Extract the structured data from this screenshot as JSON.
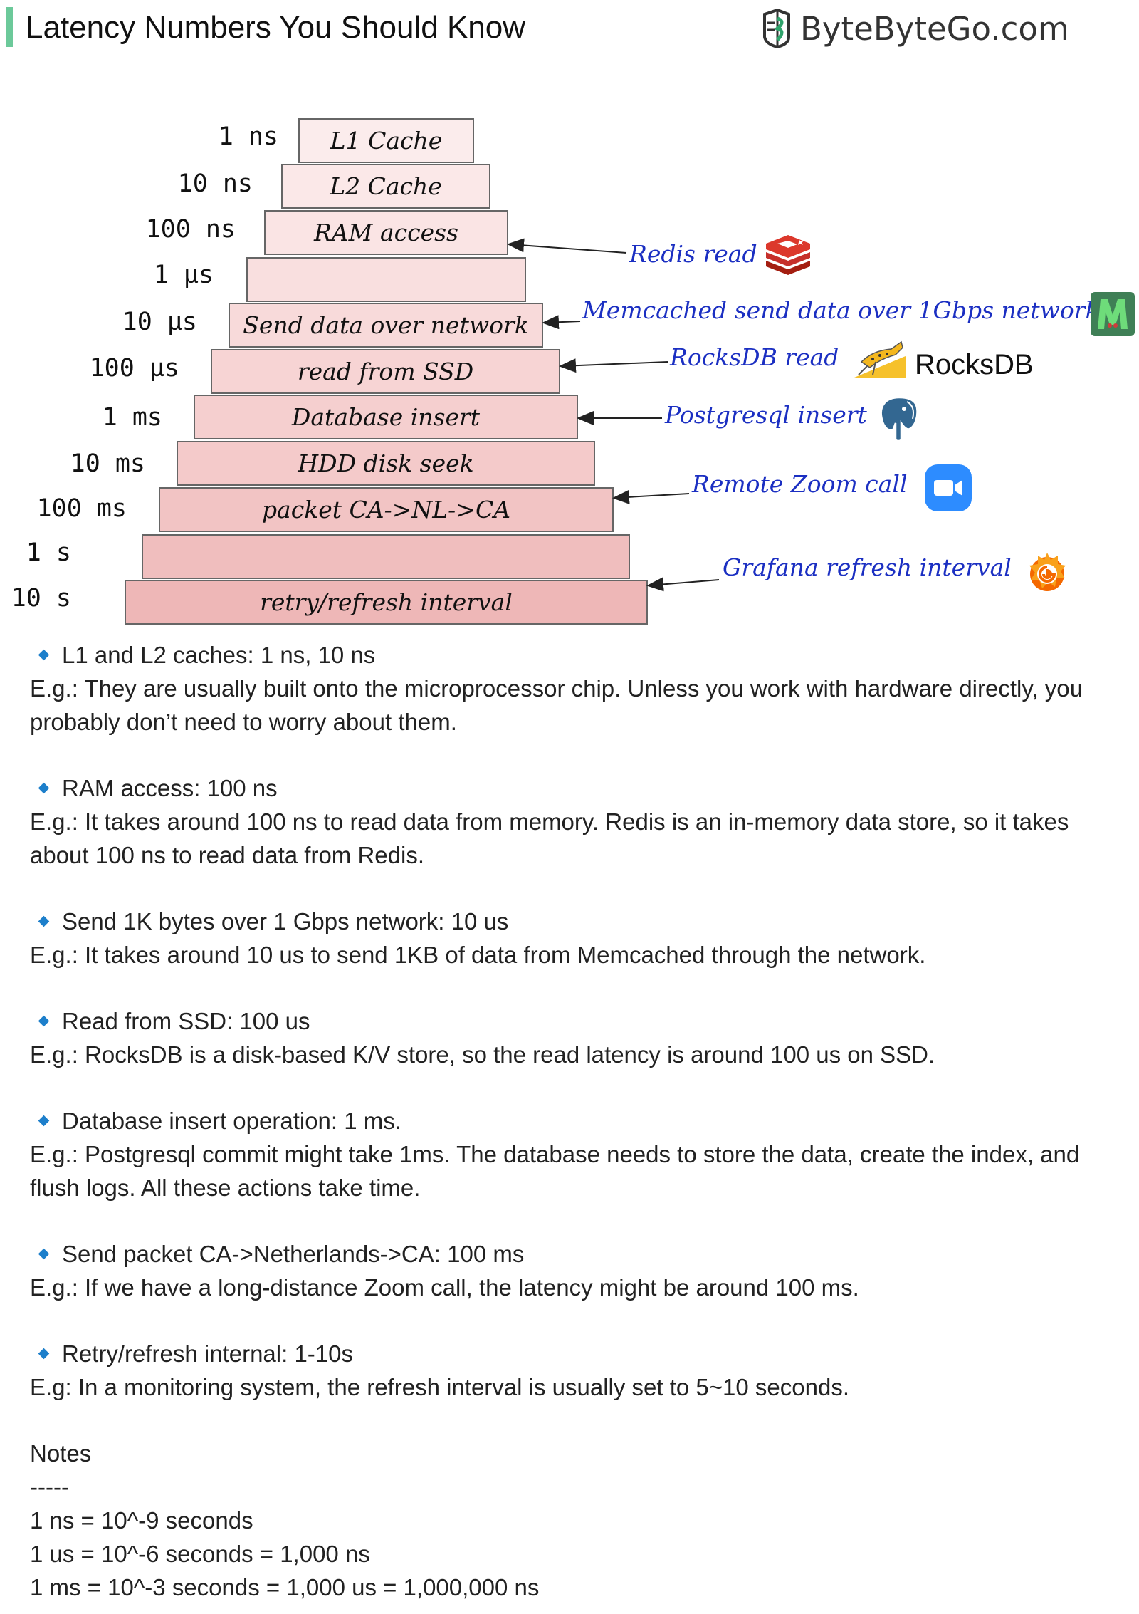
{
  "header": {
    "title": "Latency Numbers You Should Know",
    "brand": "ByteByteGo.com",
    "accent_color": "#6cc99a",
    "logo_icon": "bytebytego-logo-icon"
  },
  "pyramid": {
    "rows": [
      {
        "latency": "1 ns",
        "label": "L1 Cache"
      },
      {
        "latency": "10 ns",
        "label": "L2 Cache"
      },
      {
        "latency": "100 ns",
        "label": "RAM access"
      },
      {
        "latency": "1 µs",
        "label": ""
      },
      {
        "latency": "10 µs",
        "label": "Send data over network"
      },
      {
        "latency": "100 µs",
        "label": "read from SSD"
      },
      {
        "latency": "1 ms",
        "label": "Database insert"
      },
      {
        "latency": "10 ms",
        "label": "HDD disk seek"
      },
      {
        "latency": "100 ms",
        "label": "packet CA->NL->CA"
      },
      {
        "latency": "1 s",
        "label": ""
      },
      {
        "latency": "10 s",
        "label": "retry/refresh interval"
      }
    ],
    "colors": [
      "#fbecec",
      "#fbe8e8",
      "#fae4e4",
      "#f9dfdf",
      "#f8dada",
      "#f7d4d4",
      "#f5cfcf",
      "#f4caca",
      "#f2c4c4",
      "#f0bebe",
      "#eeb7b7"
    ]
  },
  "annotations": [
    {
      "text": "Redis read",
      "icon": "redis-icon"
    },
    {
      "text": "Memcached send data over 1Gbps network",
      "icon": "memcached-icon"
    },
    {
      "text": "RocksDB read",
      "icon": "rocksdb-icon",
      "logo_text": "RocksDB"
    },
    {
      "text": "Postgresql insert",
      "icon": "postgresql-icon"
    },
    {
      "text": "Remote Zoom call",
      "icon": "zoom-icon"
    },
    {
      "text": "Grafana refresh interval",
      "icon": "grafana-icon"
    }
  ],
  "annotation_color": "#1b2fc2",
  "items": [
    {
      "head": "L1 and L2 caches: 1 ns, 10 ns",
      "body": "E.g.: They are usually built onto the microprocessor chip. Unless you work with hardware directly, you probably don’t need to worry about them."
    },
    {
      "head": "RAM access: 100 ns",
      "body": "E.g.: It takes around 100 ns to read data from memory. Redis is an in-memory data store, so it takes about 100 ns to read data from Redis."
    },
    {
      "head": "Send 1K bytes over 1 Gbps network: 10 us",
      "body": "E.g.: It takes around 10 us to send 1KB of data from Memcached through the network."
    },
    {
      "head": "Read from SSD: 100 us",
      "body": "E.g.: RocksDB is a disk-based K/V store, so the read latency is around 100 us on SSD."
    },
    {
      "head": "Database insert operation: 1 ms.",
      "body": "E.g.: Postgresql commit might take 1ms. The database needs to store the data, create the index, and flush logs. All these actions take time."
    },
    {
      "head": "Send packet CA->Netherlands->CA: 100 ms",
      "body": "E.g.: If we have a long-distance Zoom call, the latency might be around 100 ms."
    },
    {
      "head": "Retry/refresh internal: 1-10s",
      "body": "E.g: In a monitoring system, the refresh interval is usually set to 5~10 seconds."
    }
  ],
  "notes": {
    "title": "Notes",
    "divider": "-----",
    "lines": [
      "1 ns = 10^-9 seconds",
      "1 us = 10^-6 seconds = 1,000 ns",
      "1 ms = 10^-3 seconds = 1,000 us = 1,000,000 ns"
    ]
  }
}
